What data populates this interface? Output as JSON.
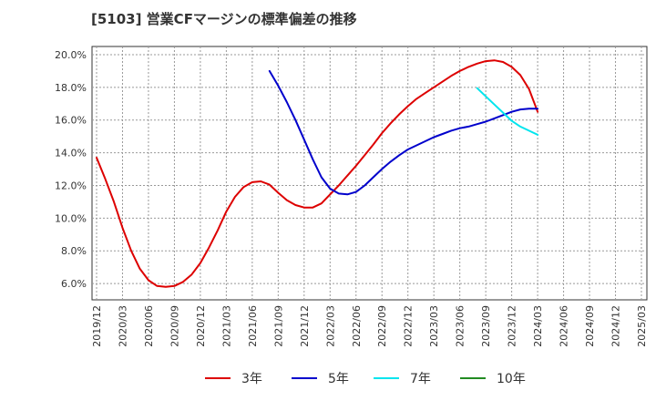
{
  "chart_title": "[5103]  営業CFマージンの標準偏差の推移",
  "chart_data": {
    "type": "line",
    "title": "[5103]  営業CFマージンの標準偏差の推移",
    "xlabel": "",
    "ylabel": "",
    "ylim": [
      5.0,
      20.5
    ],
    "yticks": [
      "6.0%",
      "8.0%",
      "10.0%",
      "12.0%",
      "14.0%",
      "16.0%",
      "18.0%",
      "20.0%"
    ],
    "xticks": [
      "2019/12",
      "2020/03",
      "2020/06",
      "2020/09",
      "2020/12",
      "2021/03",
      "2021/06",
      "2021/09",
      "2021/12",
      "2022/03",
      "2022/06",
      "2022/09",
      "2022/12",
      "2023/03",
      "2023/06",
      "2023/09",
      "2023/12",
      "2024/03",
      "2024/06",
      "2024/09",
      "2024/12",
      "2025/03"
    ],
    "grid": true,
    "legend_position": "bottom",
    "series": [
      {
        "name": "3年",
        "color": "#dd0000",
        "x": [
          "2019/12",
          "2020/01",
          "2020/02",
          "2020/03",
          "2020/04",
          "2020/05",
          "2020/06",
          "2020/07",
          "2020/08",
          "2020/09",
          "2020/10",
          "2020/11",
          "2020/12",
          "2021/01",
          "2021/02",
          "2021/03",
          "2021/04",
          "2021/05",
          "2021/06",
          "2021/07",
          "2021/08",
          "2021/09",
          "2021/10",
          "2021/11",
          "2021/12",
          "2022/01",
          "2022/02",
          "2022/03",
          "2022/04",
          "2022/05",
          "2022/06",
          "2022/07",
          "2022/08",
          "2022/09",
          "2022/10",
          "2022/11",
          "2022/12",
          "2023/01",
          "2023/02",
          "2023/03",
          "2023/04",
          "2023/05",
          "2023/06",
          "2023/07",
          "2023/08",
          "2023/09",
          "2023/10",
          "2023/11",
          "2023/12",
          "2024/01",
          "2024/02",
          "2024/03"
        ],
        "values": [
          13.7,
          12.4,
          11.0,
          9.4,
          8.0,
          6.9,
          6.2,
          5.85,
          5.8,
          5.85,
          6.1,
          6.55,
          7.25,
          8.2,
          9.25,
          10.4,
          11.3,
          11.9,
          12.2,
          12.25,
          12.05,
          11.55,
          11.1,
          10.8,
          10.65,
          10.65,
          10.9,
          11.45,
          12.0,
          12.6,
          13.2,
          13.85,
          14.5,
          15.2,
          15.8,
          16.35,
          16.85,
          17.3,
          17.65,
          18.0,
          18.35,
          18.7,
          19.0,
          19.25,
          19.45,
          19.6,
          19.65,
          19.55,
          19.25,
          18.75,
          17.9,
          16.5
        ]
      },
      {
        "name": "5年",
        "color": "#0000cc",
        "x": [
          "2021/08",
          "2021/09",
          "2021/10",
          "2021/11",
          "2021/12",
          "2022/01",
          "2022/02",
          "2022/03",
          "2022/04",
          "2022/05",
          "2022/06",
          "2022/07",
          "2022/08",
          "2022/09",
          "2022/10",
          "2022/11",
          "2022/12",
          "2023/01",
          "2023/02",
          "2023/03",
          "2023/04",
          "2023/05",
          "2023/06",
          "2023/07",
          "2023/08",
          "2023/09",
          "2023/10",
          "2023/11",
          "2023/12",
          "2024/01",
          "2024/02",
          "2024/03"
        ],
        "values": [
          19.0,
          18.1,
          17.1,
          16.0,
          14.8,
          13.6,
          12.5,
          11.8,
          11.5,
          11.45,
          11.6,
          12.0,
          12.5,
          13.0,
          13.45,
          13.85,
          14.2,
          14.45,
          14.7,
          14.95,
          15.15,
          15.35,
          15.5,
          15.6,
          15.75,
          15.9,
          16.1,
          16.3,
          16.5,
          16.65,
          16.7,
          16.7
        ]
      },
      {
        "name": "7年",
        "color": "#00e5ee",
        "x": [
          "2023/08",
          "2023/09",
          "2023/10",
          "2023/11",
          "2023/12",
          "2024/01",
          "2024/02",
          "2024/03"
        ],
        "values": [
          17.95,
          17.45,
          16.95,
          16.45,
          15.95,
          15.6,
          15.35,
          15.1
        ]
      },
      {
        "name": "10年",
        "color": "#228b22",
        "x": [],
        "values": []
      }
    ]
  }
}
